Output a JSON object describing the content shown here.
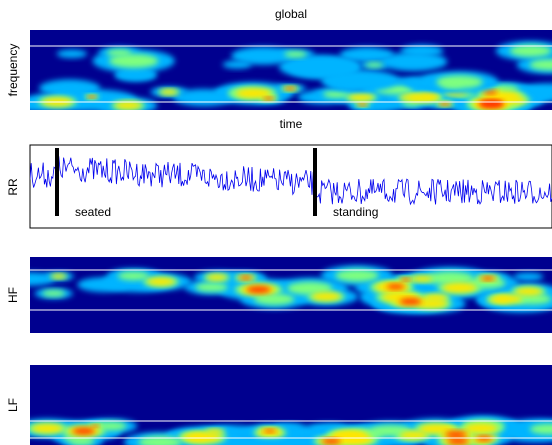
{
  "panels": [
    {
      "title": "global",
      "ylabel": "frequency",
      "xlabel": "time"
    },
    {
      "ylabel": "RR",
      "annotations": [
        "seated",
        "standing"
      ]
    },
    {
      "ylabel": "HF"
    },
    {
      "ylabel": "LF"
    }
  ]
}
